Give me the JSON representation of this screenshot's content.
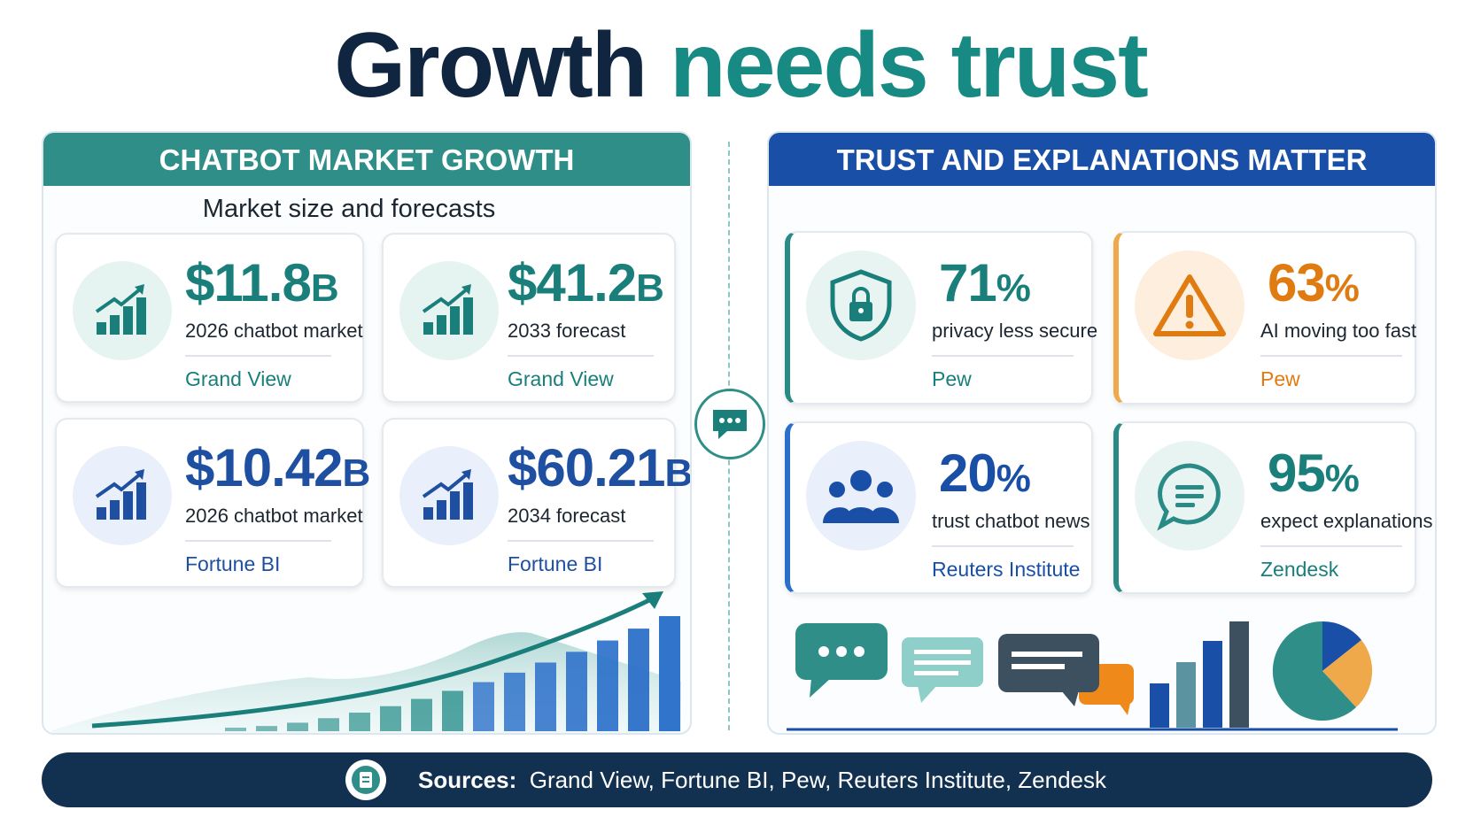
{
  "title": {
    "part1": "Growth",
    "part2": "needs trust"
  },
  "left_panel": {
    "header": "CHATBOT MARKET GROWTH",
    "subtitle": "Market size and forecasts",
    "cards": [
      {
        "value": "$11.8",
        "unit": "B",
        "label": "2026 chatbot market",
        "source": "Grand View"
      },
      {
        "value": "$41.2",
        "unit": "B",
        "label": "2033 forecast",
        "source": "Grand View"
      },
      {
        "value": "$10.42",
        "unit": "B",
        "label": "2026 chatbot market",
        "source": "Fortune BI"
      },
      {
        "value": "$60.21",
        "unit": "B",
        "label": "2034 forecast",
        "source": "Fortune BI"
      }
    ]
  },
  "right_panel": {
    "header": "TRUST AND EXPLANATIONS MATTER",
    "cards": [
      {
        "value": "71",
        "unit": "%",
        "label": "privacy less secure",
        "source": "Pew"
      },
      {
        "value": "63",
        "unit": "%",
        "label": "AI moving too fast",
        "source": "Pew"
      },
      {
        "value": "20",
        "unit": "%",
        "label": "trust chatbot news",
        "source": "Reuters Institute"
      },
      {
        "value": "95",
        "unit": "%",
        "label": "expect explanations",
        "source": "Zendesk"
      }
    ]
  },
  "footer": {
    "label": "Sources:",
    "text": "Grand View, Fortune BI, Pew, Reuters Institute, Zendesk"
  }
}
